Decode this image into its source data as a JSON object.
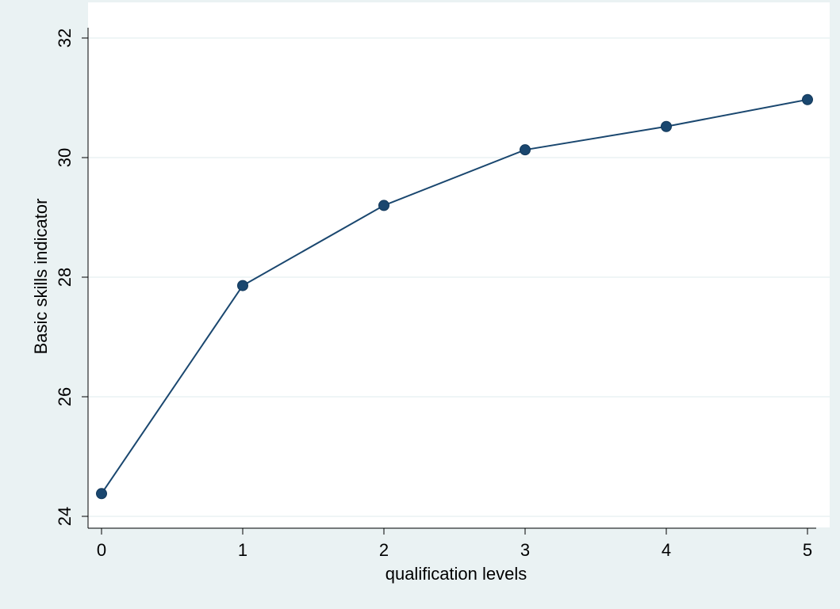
{
  "chart_data": {
    "type": "line",
    "title": "",
    "xlabel": "qualification levels",
    "ylabel": "Basic skills indicator",
    "x": [
      0,
      1,
      2,
      3,
      4,
      5
    ],
    "series": [
      {
        "values": [
          24.38,
          27.86,
          29.2,
          30.13,
          30.52,
          30.97
        ]
      }
    ],
    "xlim": [
      0,
      5
    ],
    "ylim": [
      24,
      32
    ],
    "xticks": [
      "0",
      "1",
      "2",
      "3",
      "4",
      "5"
    ],
    "yticks": [
      "24",
      "26",
      "28",
      "30",
      "32"
    ],
    "grid": true,
    "legend": "none",
    "colors": {
      "background": "#eaf2f3",
      "plot_background": "#ffffff",
      "series": "#1a476f",
      "grid": "#eaf2f3",
      "axis": "#000000"
    }
  }
}
